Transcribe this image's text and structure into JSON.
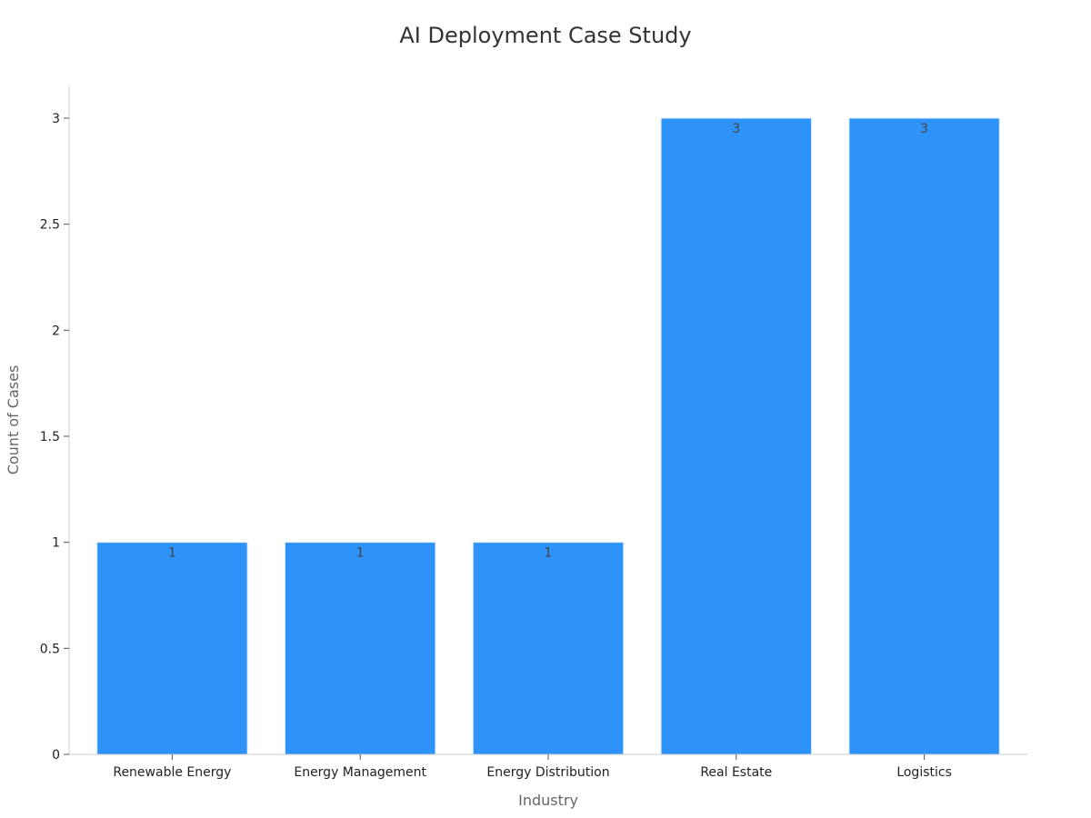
{
  "chart_data": {
    "type": "bar",
    "title": "AI Deployment Case Study",
    "xlabel": "Industry",
    "ylabel": "Count of Cases",
    "categories": [
      "Renewable Energy",
      "Energy Management",
      "Energy Distribution",
      "Real Estate",
      "Logistics"
    ],
    "values": [
      1,
      1,
      1,
      3,
      3
    ],
    "ylim": [
      0,
      3.15
    ],
    "yticks": [
      0,
      0.5,
      1,
      1.5,
      2,
      2.5,
      3
    ],
    "ytick_labels": [
      "0",
      "0.5",
      "1",
      "1.5",
      "2",
      "2.5",
      "3"
    ],
    "data_labels": [
      "1",
      "1",
      "1",
      "3",
      "3"
    ],
    "bar_color": "#2e93f8",
    "grid": false,
    "legend": "none"
  }
}
